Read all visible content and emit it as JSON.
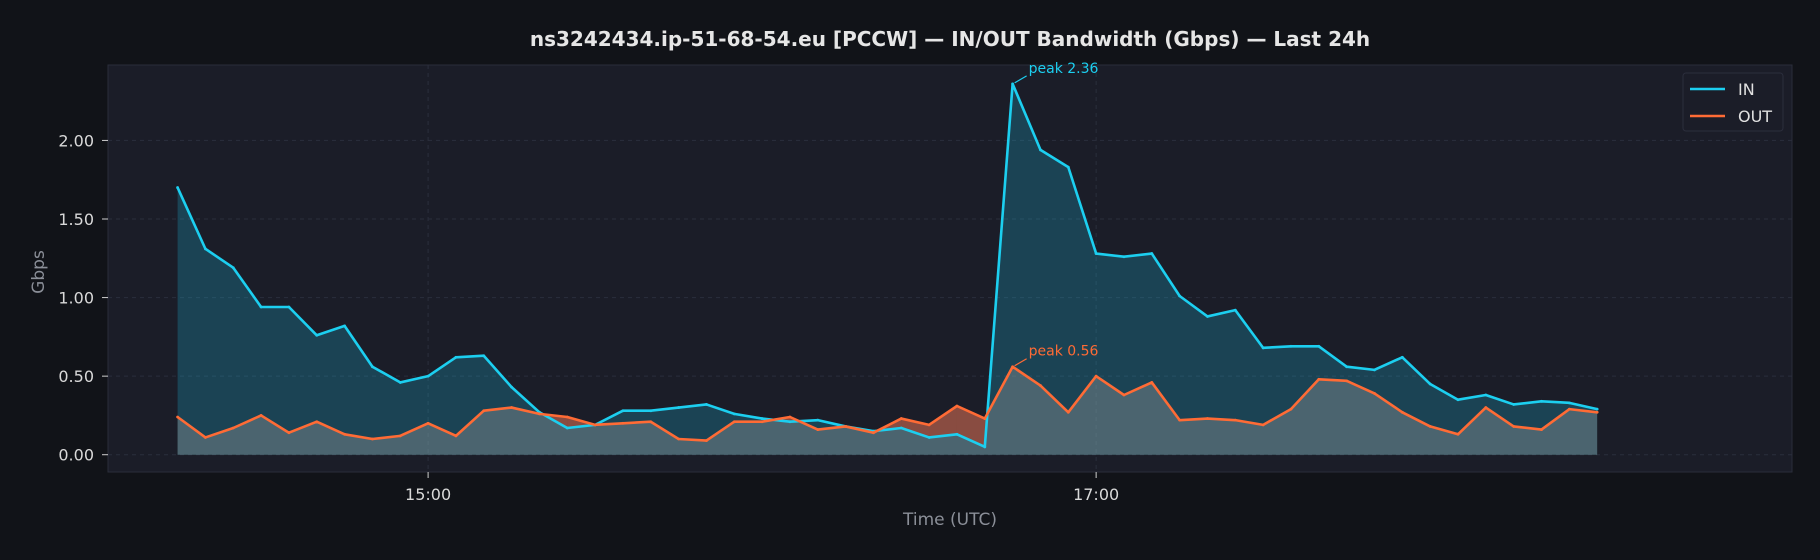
{
  "chart_data": {
    "type": "line",
    "title": "ns3242434.ip-51-68-54.eu [PCCW] — IN/OUT Bandwidth (Gbps) — Last 24h",
    "xlabel": "Time (UTC)",
    "ylabel": "Gbps",
    "x_start": "14:15",
    "x_step_minutes": 5,
    "x_ticks": [
      "15:00",
      "17:00"
    ],
    "y_ticks": [
      "0.00",
      "0.50",
      "1.00",
      "1.50",
      "2.00"
    ],
    "ylim": [
      -0.11,
      2.48
    ],
    "xlim_minutes": [
      -12.5,
      290
    ],
    "grid": true,
    "legend_position": "top-right",
    "series": [
      {
        "name": "IN",
        "color": "#1ccff0",
        "fill": "#1ccff0",
        "values": [
          1.7,
          1.31,
          1.19,
          0.94,
          0.94,
          0.76,
          0.82,
          0.56,
          0.46,
          0.5,
          0.62,
          0.63,
          0.43,
          0.27,
          0.17,
          0.19,
          0.28,
          0.28,
          0.3,
          0.32,
          0.26,
          0.23,
          0.21,
          0.22,
          0.18,
          0.15,
          0.17,
          0.11,
          0.13,
          0.05,
          2.36,
          1.94,
          1.83,
          1.28,
          1.26,
          1.28,
          1.01,
          0.88,
          0.92,
          0.68,
          0.69,
          0.69,
          0.56,
          0.54,
          0.62,
          0.45,
          0.35,
          0.38,
          0.32,
          0.34,
          0.33,
          0.29
        ]
      },
      {
        "name": "OUT",
        "color": "#ff6b35",
        "fill": "#9a9a9a",
        "values": [
          0.24,
          0.11,
          0.17,
          0.25,
          0.14,
          0.21,
          0.13,
          0.1,
          0.12,
          0.2,
          0.12,
          0.28,
          0.3,
          0.26,
          0.24,
          0.19,
          0.2,
          0.21,
          0.1,
          0.09,
          0.21,
          0.21,
          0.24,
          0.16,
          0.18,
          0.14,
          0.23,
          0.19,
          0.31,
          0.23,
          0.56,
          0.44,
          0.27,
          0.5,
          0.38,
          0.46,
          0.22,
          0.23,
          0.22,
          0.19,
          0.29,
          0.48,
          0.47,
          0.39,
          0.27,
          0.18,
          0.13,
          0.3,
          0.18,
          0.16,
          0.29,
          0.27
        ]
      }
    ],
    "annotations": [
      {
        "text": "peak 2.36",
        "series": "IN",
        "index": 30,
        "color": "#1ccff0"
      },
      {
        "text": "peak 0.56",
        "series": "OUT",
        "index": 30,
        "color": "#ff6b35"
      }
    ],
    "colors": {
      "background": "#111318",
      "plot_background": "#1b1d28",
      "overlap_highlight": "#ff4a1f"
    }
  }
}
